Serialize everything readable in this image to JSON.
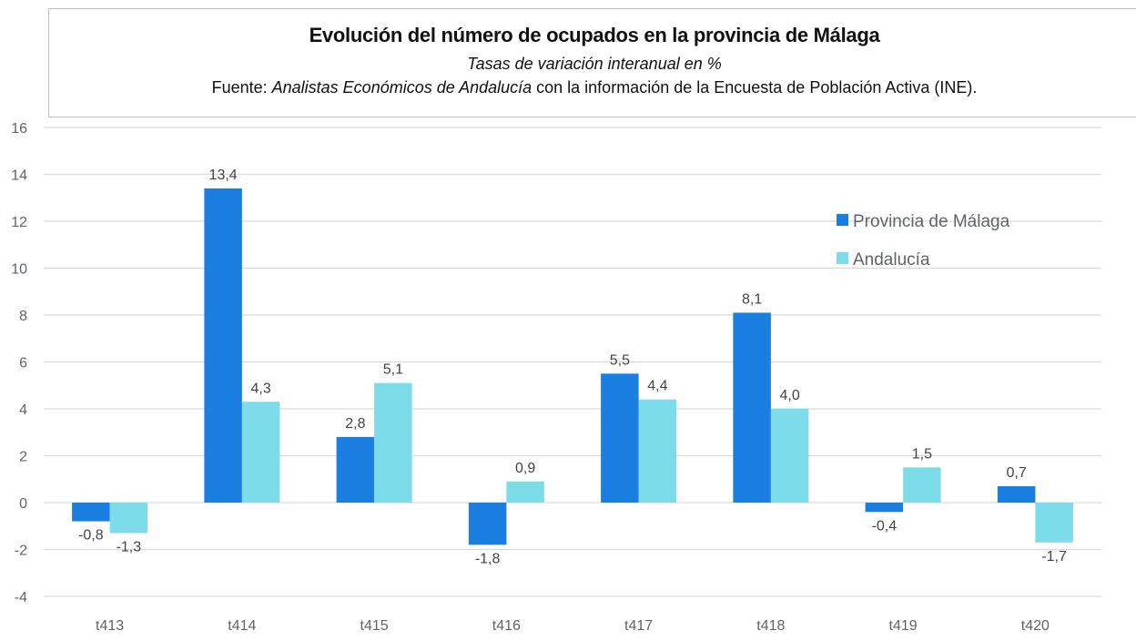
{
  "chart_data": {
    "type": "bar",
    "title": "Evolución del número de ocupados en la provincia de Málaga",
    "subtitle": "Tasas de variación interanual en %",
    "source_prefix": "Fuente: ",
    "source_italic": "Analistas Económicos de Andalucía",
    "source_suffix": " con la información de la Encuesta de Población Activa (INE).",
    "xlabel": "",
    "ylabel": "",
    "categories": [
      "t413",
      "t414",
      "t415",
      "t416",
      "t417",
      "t418",
      "t419",
      "t420"
    ],
    "series": [
      {
        "name": "Provincia de Málaga",
        "color": "#1a7fe0",
        "values": [
          -0.8,
          13.4,
          2.8,
          -1.8,
          5.5,
          8.1,
          -0.4,
          0.7
        ],
        "labels": [
          "-0,8",
          "13,4",
          "2,8",
          "-1,8",
          "5,5",
          "8,1",
          "-0,4",
          "0,7"
        ]
      },
      {
        "name": "Andalucía",
        "color": "#7ddcea",
        "values": [
          -1.3,
          4.3,
          5.1,
          0.9,
          4.4,
          4.0,
          1.5,
          -1.7
        ],
        "labels": [
          "-1,3",
          "4,3",
          "5,1",
          "0,9",
          "4,4",
          "4,0",
          "1,5",
          "-1,7"
        ]
      }
    ],
    "ylim": [
      -4,
      16
    ],
    "yticks": [
      16,
      14,
      12,
      10,
      8,
      6,
      4,
      2,
      0,
      -2,
      -4
    ],
    "ytick_labels": [
      "16",
      "14",
      "12",
      "10",
      "8",
      "6",
      "4",
      "2",
      "0",
      "-2",
      "-4"
    ],
    "grid": true,
    "legend_position": "right"
  }
}
